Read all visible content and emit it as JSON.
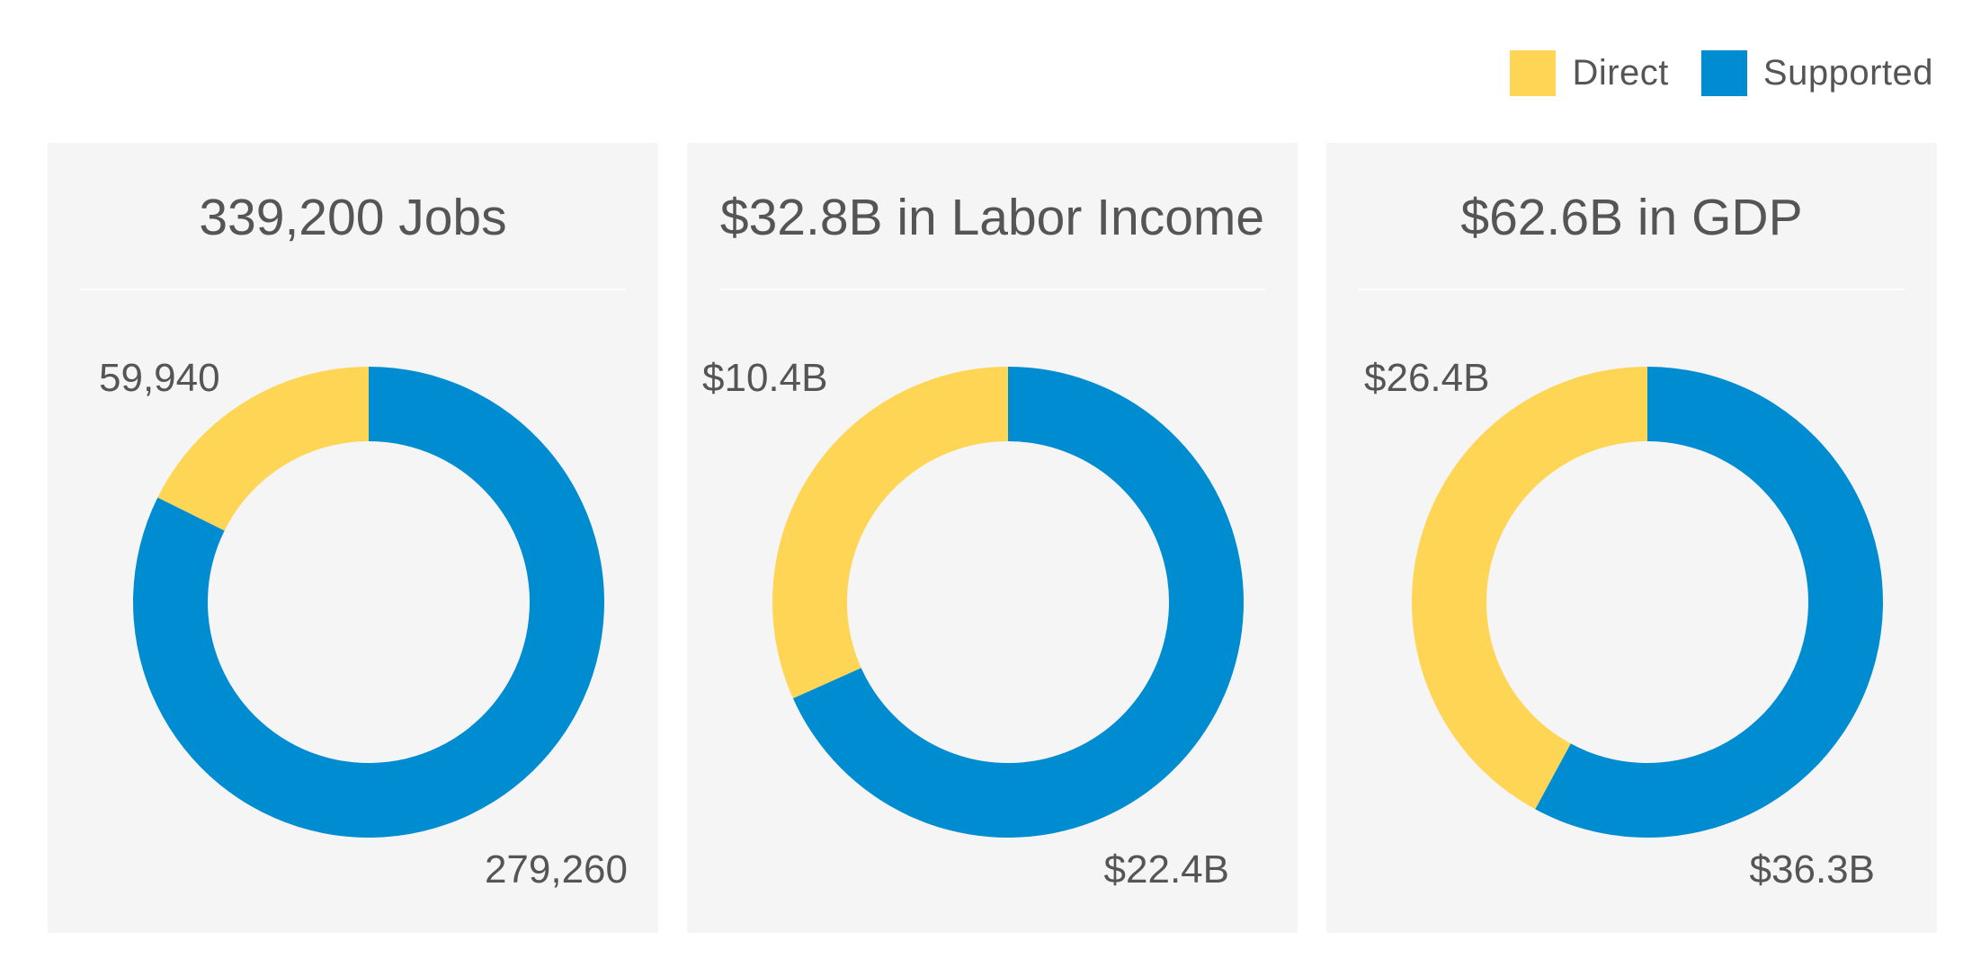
{
  "colors": {
    "direct": "#fed555",
    "supported": "#008cd1",
    "panel_bg": "#f5f5f5",
    "text": "#555555"
  },
  "legend": [
    {
      "label": "Direct",
      "color": "#fed555"
    },
    {
      "label": "Supported",
      "color": "#008cd1"
    }
  ],
  "chart_data": [
    {
      "type": "pie",
      "variant": "donut",
      "title": "339,200 Jobs",
      "categories": [
        "Direct",
        "Supported"
      ],
      "values": [
        59940,
        279260
      ],
      "labels": [
        "59,940",
        "279,260"
      ],
      "colors": [
        "#fed555",
        "#008cd1"
      ],
      "legend": "top-right"
    },
    {
      "type": "pie",
      "variant": "donut",
      "title": "$32.8B in Labor Income",
      "categories": [
        "Direct",
        "Supported"
      ],
      "values": [
        10.4,
        22.4
      ],
      "labels": [
        "$10.4B",
        "$22.4B"
      ],
      "colors": [
        "#fed555",
        "#008cd1"
      ],
      "legend": "top-right"
    },
    {
      "type": "pie",
      "variant": "donut",
      "title": "$62.6B in GDP",
      "categories": [
        "Direct",
        "Supported"
      ],
      "values": [
        26.4,
        36.3
      ],
      "labels": [
        "$26.4B",
        "$36.3B"
      ],
      "colors": [
        "#fed555",
        "#008cd1"
      ],
      "legend": "top-right"
    }
  ]
}
